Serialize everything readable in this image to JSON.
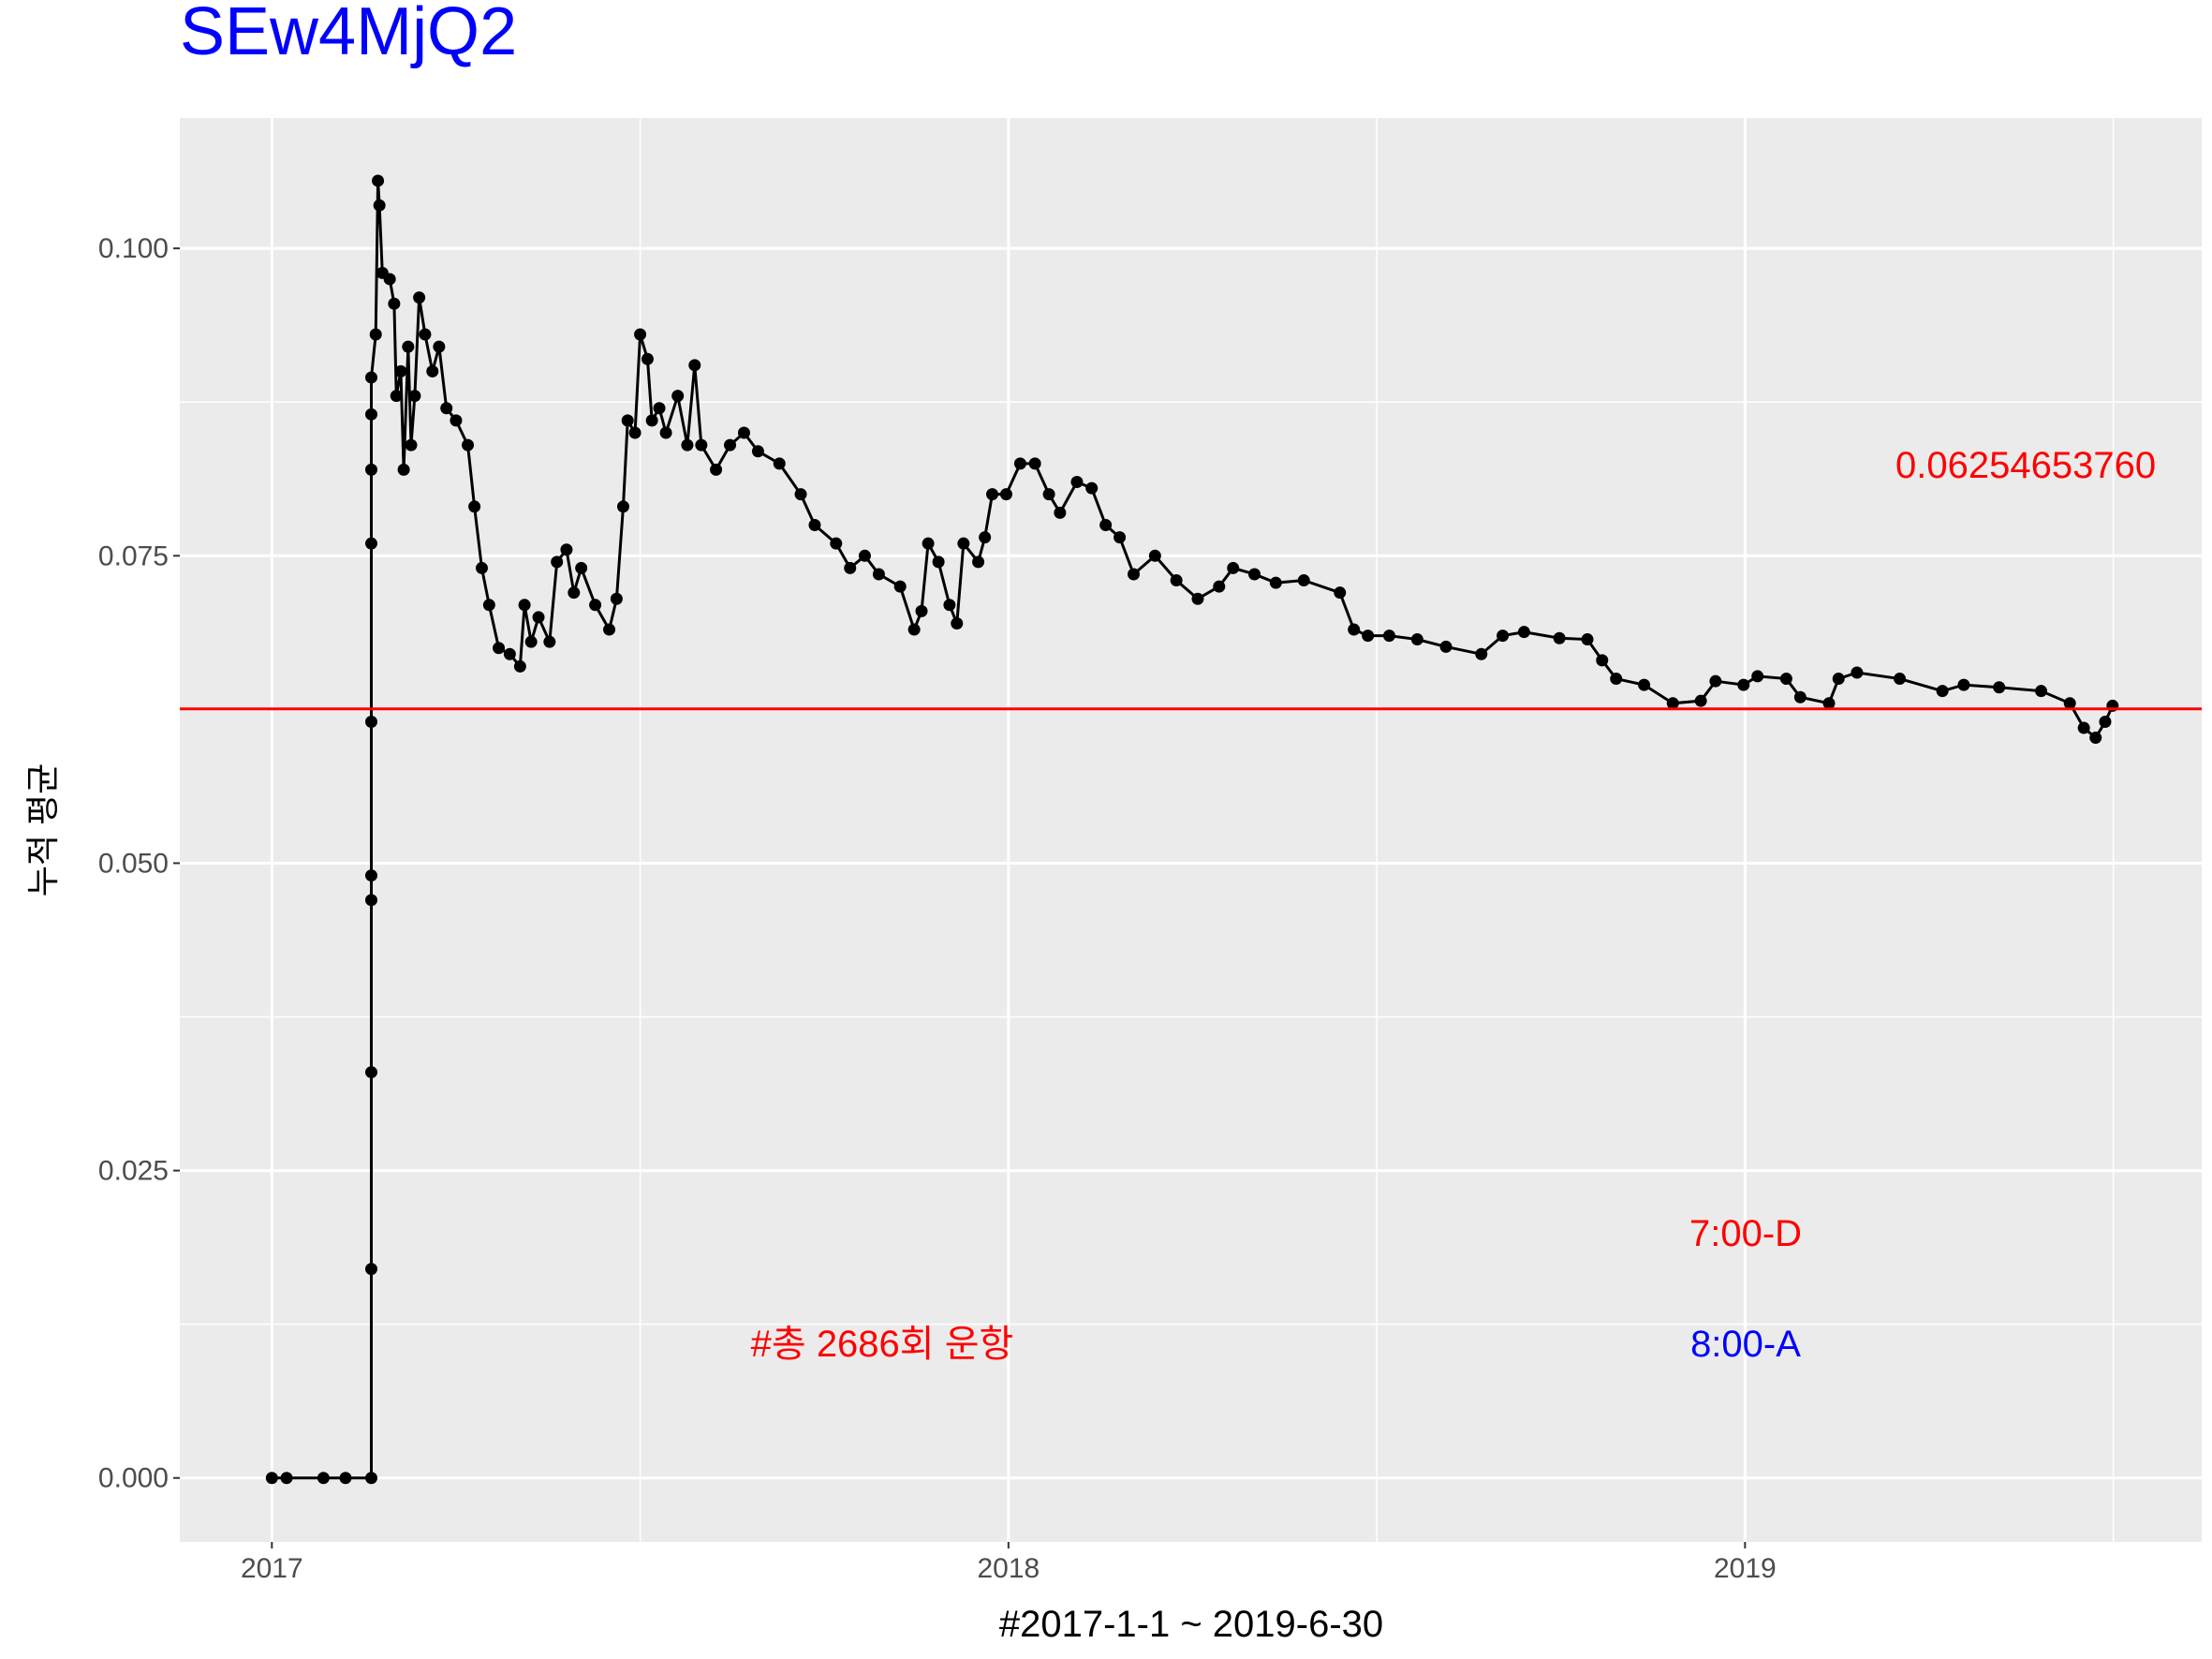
{
  "chart_data": {
    "type": "line",
    "title": "SEw4MjQ2",
    "title_color": "#0000ff",
    "x_label": "#2017-1-1 ~ 2019-6-30",
    "y_label": "누적 평균",
    "xlim": [
      2016.875,
      2019.62
    ],
    "ylim": [
      -0.0052,
      0.1106
    ],
    "xticks": [
      2017,
      2018,
      2019
    ],
    "yticks": [
      {
        "value": 0,
        "label": "0.000"
      },
      {
        "value": 0.025,
        "label": "0.025"
      },
      {
        "value": 0.05,
        "label": "0.050"
      },
      {
        "value": 0.075,
        "label": "0.075"
      },
      {
        "value": 0.1,
        "label": "0.100"
      }
    ],
    "grid": true,
    "minor_grid": true,
    "color": "#000000",
    "x": [
      2017.0,
      2017.02,
      2017.07,
      2017.1,
      2017.135,
      2017.135,
      2017.135,
      2017.135,
      2017.135,
      2017.135,
      2017.135,
      2017.135,
      2017.135,
      2017.135,
      2017.141,
      2017.144,
      2017.146,
      2017.15,
      2017.16,
      2017.166,
      2017.169,
      2017.175,
      2017.179,
      2017.185,
      2017.189,
      2017.194,
      2017.2,
      2017.208,
      2017.218,
      2017.227,
      2017.237,
      2017.25,
      2017.266,
      2017.275,
      2017.285,
      2017.295,
      2017.308,
      2017.323,
      2017.337,
      2017.343,
      2017.352,
      2017.362,
      2017.377,
      2017.387,
      2017.4,
      2017.41,
      2017.42,
      2017.439,
      2017.458,
      2017.468,
      2017.477,
      2017.483,
      2017.493,
      2017.5,
      2017.51,
      2017.516,
      2017.526,
      2017.535,
      2017.551,
      2017.564,
      2017.574,
      2017.583,
      2017.603,
      2017.622,
      2017.641,
      2017.66,
      2017.689,
      2017.718,
      2017.737,
      2017.766,
      2017.785,
      2017.805,
      2017.824,
      2017.853,
      2017.872,
      2017.882,
      2017.891,
      2017.905,
      2017.92,
      2017.93,
      2017.939,
      2017.959,
      2017.968,
      2017.978,
      2017.997,
      2018.016,
      2018.036,
      2018.055,
      2018.07,
      2018.093,
      2018.113,
      2018.132,
      2018.151,
      2018.17,
      2018.199,
      2018.228,
      2018.257,
      2018.286,
      2018.305,
      2018.334,
      2018.363,
      2018.401,
      2018.45,
      2018.469,
      2018.488,
      2018.517,
      2018.555,
      2018.594,
      2018.642,
      2018.671,
      2018.7,
      2018.748,
      2018.786,
      2018.806,
      2018.825,
      2018.863,
      2018.902,
      2018.94,
      2018.96,
      2018.998,
      2019.017,
      2019.056,
      2019.075,
      2019.114,
      2019.127,
      2019.152,
      2019.21,
      2019.268,
      2019.297,
      2019.345,
      2019.402,
      2019.441,
      2019.46,
      2019.476,
      2019.489,
      2019.499
    ],
    "values": [
      0,
      0,
      0,
      0,
      0,
      0.017,
      0.033,
      0.047,
      0.049,
      0.0615,
      0.076,
      0.082,
      0.0865,
      0.0895,
      0.093,
      0.1055,
      0.1035,
      0.098,
      0.0975,
      0.0955,
      0.088,
      0.09,
      0.082,
      0.092,
      0.084,
      0.088,
      0.096,
      0.093,
      0.09,
      0.092,
      0.087,
      0.086,
      0.084,
      0.079,
      0.074,
      0.071,
      0.0675,
      0.067,
      0.066,
      0.071,
      0.068,
      0.07,
      0.068,
      0.0745,
      0.0755,
      0.072,
      0.074,
      0.071,
      0.069,
      0.0715,
      0.079,
      0.086,
      0.085,
      0.093,
      0.091,
      0.086,
      0.087,
      0.085,
      0.088,
      0.084,
      0.0905,
      0.084,
      0.082,
      0.084,
      0.085,
      0.0835,
      0.0825,
      0.08,
      0.0775,
      0.076,
      0.074,
      0.075,
      0.0735,
      0.0725,
      0.069,
      0.0705,
      0.076,
      0.0745,
      0.071,
      0.0695,
      0.076,
      0.0745,
      0.0765,
      0.08,
      0.08,
      0.0825,
      0.0825,
      0.08,
      0.0785,
      0.081,
      0.0805,
      0.0775,
      0.0765,
      0.0735,
      0.075,
      0.073,
      0.0715,
      0.0725,
      0.074,
      0.0735,
      0.0728,
      0.073,
      0.072,
      0.069,
      0.0685,
      0.0685,
      0.0682,
      0.0676,
      0.067,
      0.0685,
      0.0688,
      0.0683,
      0.0682,
      0.0665,
      0.065,
      0.0645,
      0.063,
      0.0632,
      0.0648,
      0.0645,
      0.0652,
      0.065,
      0.0635,
      0.063,
      0.065,
      0.0655,
      0.065,
      0.064,
      0.0645,
      0.0643,
      0.064,
      0.063,
      0.061,
      0.0602,
      0.0615,
      0.0628
    ],
    "hline": {
      "value": 0.0625465376,
      "label": "0.06254653760",
      "color": "#ff0000"
    },
    "annotations": [
      {
        "text": "7:00-D",
        "color": "#ff0000"
      },
      {
        "text": "8:00-A",
        "color": "#0000ff"
      },
      {
        "text": "#총 2686회 운항",
        "color": "#ff0000"
      }
    ]
  }
}
